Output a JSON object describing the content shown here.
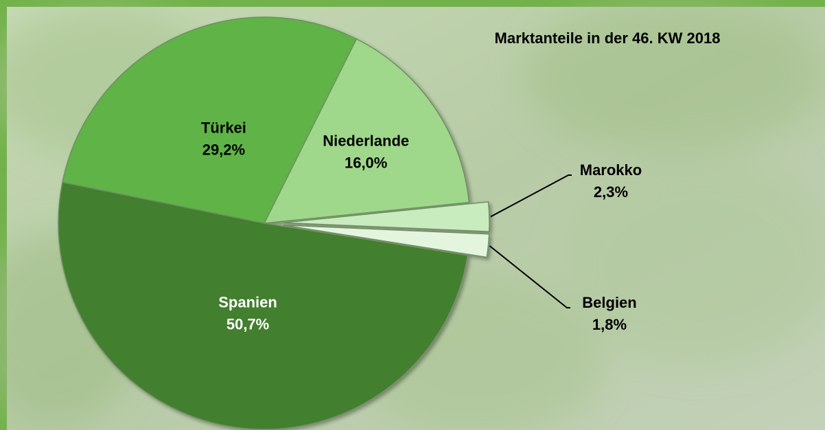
{
  "chart_data": {
    "type": "pie",
    "title": "Marktanteile in der 46. KW 2018",
    "categories": [
      "Niederlande",
      "Marokko",
      "Belgien",
      "Spanien",
      "Türkei"
    ],
    "values": [
      16.0,
      2.3,
      1.8,
      50.7,
      29.2
    ],
    "value_labels": [
      "16,0%",
      "2,3%",
      "1,8%",
      "50,7%",
      "29,2%"
    ],
    "colors": [
      "#9fd88a",
      "#c9ecbf",
      "#e4f5dd",
      "#427f2f",
      "#5fb347"
    ]
  }
}
